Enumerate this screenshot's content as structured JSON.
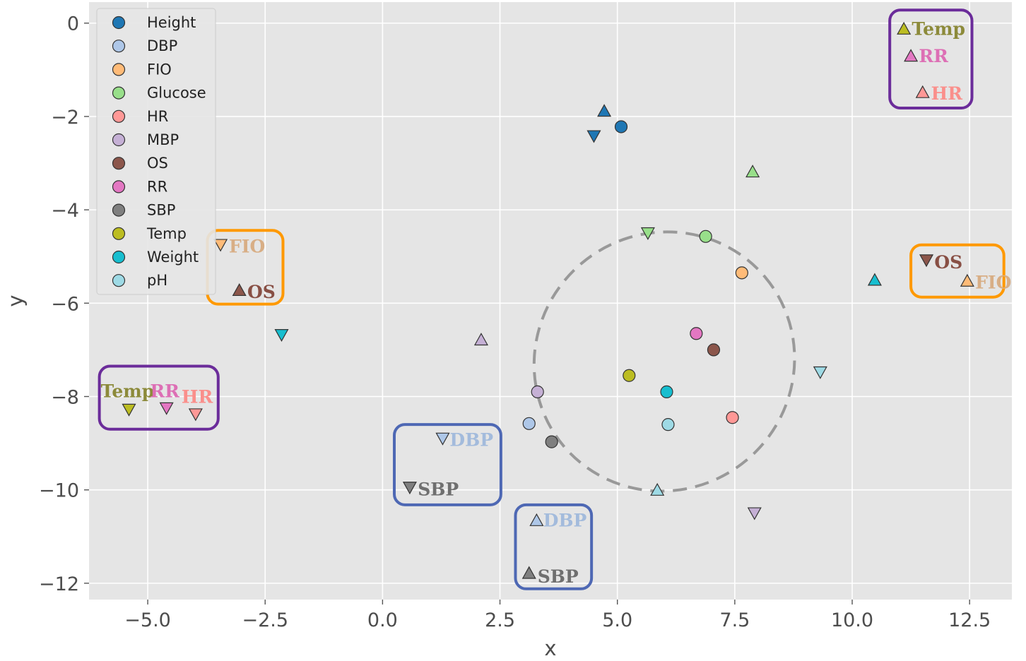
{
  "chart_data": {
    "type": "scatter",
    "xlabel": "x",
    "ylabel": "y",
    "xlim": [
      -6.25,
      13.4
    ],
    "ylim": [
      -12.35,
      0.45
    ],
    "grid": true,
    "legend_position": "top-left",
    "x_ticks": [
      -5.0,
      -2.5,
      0.0,
      2.5,
      5.0,
      7.5,
      10.0,
      12.5
    ],
    "x_tick_labels": [
      "−5.0",
      "−2.5",
      "0.0",
      "2.5",
      "5.0",
      "7.5",
      "10.0",
      "12.5"
    ],
    "y_ticks": [
      0,
      -2,
      -4,
      -6,
      -8,
      -10,
      -12
    ],
    "y_tick_labels": [
      "0",
      "−2",
      "−4",
      "−6",
      "−8",
      "−10",
      "−12"
    ],
    "legend": [
      {
        "label": "Height",
        "color": "#1f77b4"
      },
      {
        "label": "DBP",
        "color": "#aec7e8"
      },
      {
        "label": "FIO",
        "color": "#ffbb78"
      },
      {
        "label": "Glucose",
        "color": "#98df8a"
      },
      {
        "label": "HR",
        "color": "#ff9896"
      },
      {
        "label": "MBP",
        "color": "#c5b0d5"
      },
      {
        "label": "OS",
        "color": "#8c564b"
      },
      {
        "label": "RR",
        "color": "#e377c2"
      },
      {
        "label": "SBP",
        "color": "#7f7f7f"
      },
      {
        "label": "Temp",
        "color": "#bcbd22"
      },
      {
        "label": "Weight",
        "color": "#17becf"
      },
      {
        "label": "pH",
        "color": "#9edae5"
      }
    ],
    "series": [
      {
        "name": "Height",
        "color": "#1f77b4",
        "circle": [
          5.08,
          -2.22
        ],
        "triangle_up": [
          4.72,
          -1.88
        ],
        "triangle_down": [
          4.5,
          -2.42
        ]
      },
      {
        "name": "DBP",
        "color": "#aec7e8",
        "circle": [
          3.12,
          -8.58
        ],
        "triangle_up": [
          3.28,
          -10.65
        ],
        "triangle_down": [
          1.28,
          -8.9
        ]
      },
      {
        "name": "FIO",
        "color": "#ffbb78",
        "circle": [
          7.65,
          -5.35
        ],
        "triangle_up": [
          12.45,
          -5.52
        ],
        "triangle_down": [
          -3.45,
          -4.75
        ]
      },
      {
        "name": "Glucose",
        "color": "#98df8a",
        "circle": [
          6.88,
          -4.57
        ],
        "triangle_up": [
          7.88,
          -3.18
        ],
        "triangle_down": [
          5.65,
          -4.5
        ]
      },
      {
        "name": "HR",
        "color": "#ff9896",
        "circle": [
          7.45,
          -8.45
        ],
        "triangle_up": [
          11.5,
          -1.48
        ],
        "triangle_down": [
          -3.98,
          -8.38
        ]
      },
      {
        "name": "MBP",
        "color": "#c5b0d5",
        "circle": [
          3.3,
          -7.9
        ],
        "triangle_up": [
          2.1,
          -6.78
        ],
        "triangle_down": [
          7.92,
          -10.5
        ]
      },
      {
        "name": "OS",
        "color": "#8c564b",
        "circle": [
          7.05,
          -7.0
        ],
        "triangle_up": [
          -3.05,
          -5.72
        ],
        "triangle_down": [
          11.58,
          -5.08
        ]
      },
      {
        "name": "RR",
        "color": "#e377c2",
        "circle": [
          6.68,
          -6.65
        ],
        "triangle_up": [
          11.25,
          -0.7
        ],
        "triangle_down": [
          -4.6,
          -8.25
        ]
      },
      {
        "name": "SBP",
        "color": "#7f7f7f",
        "circle": [
          3.6,
          -8.97
        ],
        "triangle_up": [
          3.12,
          -11.78
        ],
        "triangle_down": [
          0.58,
          -9.95
        ]
      },
      {
        "name": "Temp",
        "color": "#bcbd22",
        "circle": [
          5.25,
          -7.55
        ],
        "triangle_up": [
          11.1,
          -0.12
        ],
        "triangle_down": [
          -5.4,
          -8.28
        ]
      },
      {
        "name": "Weight",
        "color": "#17becf",
        "circle": [
          6.05,
          -7.9
        ],
        "triangle_up": [
          10.48,
          -5.5
        ],
        "triangle_down": [
          -2.15,
          -6.68
        ]
      },
      {
        "name": "pH",
        "color": "#9edae5",
        "circle": [
          6.08,
          -8.6
        ],
        "triangle_up": [
          5.85,
          -10.0
        ],
        "triangle_down": [
          9.32,
          -7.48
        ]
      }
    ],
    "ellipse": {
      "center": [
        6.0,
        -7.25
      ],
      "semi_x": 2.8,
      "semi_y": 2.75,
      "angle_deg": 40,
      "color": "#999999",
      "style": "dashed"
    },
    "annotations": [
      {
        "text": "Temp",
        "color": "#8c8a3a",
        "at": [
          11.27,
          -0.12
        ]
      },
      {
        "text": "RR",
        "color": "#dd6fb5",
        "at": [
          11.42,
          -0.7
        ]
      },
      {
        "text": "HR",
        "color": "#fa8f8b",
        "at": [
          11.68,
          -1.5
        ]
      },
      {
        "text": "FIO",
        "color": "#d8ae85",
        "at": [
          -3.27,
          -4.78
        ]
      },
      {
        "text": "OS",
        "color": "#884f44",
        "at": [
          -2.88,
          -5.75
        ]
      },
      {
        "text": "OS",
        "color": "#884f44",
        "at": [
          11.75,
          -5.12
        ]
      },
      {
        "text": "FIO",
        "color": "#d8ae85",
        "at": [
          12.62,
          -5.55
        ]
      },
      {
        "text": "Temp",
        "color": "#8c8a3a",
        "at": [
          -6.0,
          -7.88
        ]
      },
      {
        "text": "RR",
        "color": "#dd6fb5",
        "at": [
          -4.95,
          -7.88
        ]
      },
      {
        "text": "HR",
        "color": "#fa8f8b",
        "at": [
          -4.28,
          -8.0
        ]
      },
      {
        "text": "DBP",
        "color": "#a3bbdc",
        "at": [
          1.43,
          -8.92
        ]
      },
      {
        "text": "SBP",
        "color": "#6f6f6f",
        "at": [
          0.75,
          -9.98
        ]
      },
      {
        "text": "DBP",
        "color": "#a3bbdc",
        "at": [
          3.42,
          -10.65
        ]
      },
      {
        "text": "SBP",
        "color": "#6f6f6f",
        "at": [
          3.3,
          -11.85
        ]
      }
    ],
    "highlight_boxes": [
      {
        "color": "#6b2c9a",
        "x": [
          10.8,
          12.55
        ],
        "y": [
          0.28,
          -1.82
        ]
      },
      {
        "color": "#ff9900",
        "x": [
          -3.73,
          -2.12
        ],
        "y": [
          -4.44,
          -6.02
        ]
      },
      {
        "color": "#ff9900",
        "x": [
          11.25,
          13.23
        ],
        "y": [
          -4.75,
          -5.87
        ]
      },
      {
        "color": "#6b2c9a",
        "x": [
          -6.03,
          -3.5
        ],
        "y": [
          -7.35,
          -8.7
        ]
      },
      {
        "color": "#4e68b4",
        "x": [
          0.25,
          2.52
        ],
        "y": [
          -8.6,
          -10.32
        ]
      },
      {
        "color": "#4e68b4",
        "x": [
          2.83,
          4.45
        ],
        "y": [
          -10.32,
          -12.12
        ]
      }
    ]
  }
}
